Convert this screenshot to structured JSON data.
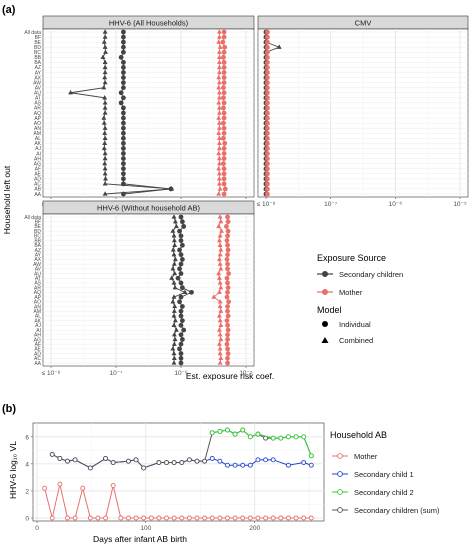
{
  "figure": {
    "panel_a_label": "(a)",
    "panel_b_label": "(b)"
  },
  "legend_a": {
    "exposure_title": "Exposure Source",
    "exposure_items": [
      {
        "label": "Secondary children",
        "color": "#444444"
      },
      {
        "label": "Mother",
        "color": "#e8706b"
      }
    ],
    "model_title": "Model",
    "model_items": [
      {
        "label": "Individual",
        "shape": "circle"
      },
      {
        "label": "Combined",
        "shape": "triangle"
      }
    ]
  },
  "legend_b": {
    "title": "Household AB",
    "items": [
      {
        "label": "Mother",
        "color": "#e8706b"
      },
      {
        "label": "Secondary child 1",
        "color": "#2244cc"
      },
      {
        "label": "Secondary child 2",
        "color": "#33cc33"
      },
      {
        "label": "Secondary children (sum)",
        "color": "#555555"
      }
    ]
  },
  "chart_data": [
    {
      "type": "scatter",
      "title": "HHV-6 (All Households)",
      "xlabel": "Est. exposure risk coef.",
      "ylabel": "Household left out",
      "x_scale": "log",
      "xlim": [
        1e-08,
        1e-05
      ],
      "x_tick_labels": [
        "≤ 10⁻⁸",
        "10⁻⁷",
        "10⁻⁶",
        "10⁻⁵"
      ],
      "categories": [
        "All data",
        "BF",
        "BE",
        "BD",
        "BC",
        "BB",
        "BA",
        "AZ",
        "AY",
        "AX",
        "AW",
        "AV",
        "AU",
        "AT",
        "AS",
        "AR",
        "AQ",
        "AP",
        "AO",
        "AN",
        "AM",
        "AL",
        "AK",
        "AJ",
        "AI",
        "AH",
        "AG",
        "AF",
        "AE",
        "AD",
        "AC",
        "AB",
        "AA"
      ],
      "series": [
        {
          "name": "Secondary children",
          "model": "Individual",
          "color": "#444444",
          "values": [
            1.3e-07,
            1.3e-07,
            1.3e-07,
            1.3e-07,
            1.3e-07,
            1.2e-07,
            1.3e-07,
            1.3e-07,
            1.3e-07,
            1.3e-07,
            1.3e-07,
            1.3e-07,
            1.2e-07,
            1.3e-07,
            1.2e-07,
            1.3e-07,
            1.3e-07,
            1.3e-07,
            1.3e-07,
            1.3e-07,
            1.3e-07,
            1.3e-07,
            1.3e-07,
            1.3e-07,
            1.3e-07,
            1.3e-07,
            1.3e-07,
            1.3e-07,
            1.3e-07,
            1.3e-07,
            1.3e-07,
            7e-07,
            1.3e-07
          ]
        },
        {
          "name": "Secondary children",
          "model": "Combined",
          "color": "#444444",
          "values": [
            6.8e-08,
            6.8e-08,
            6.6e-08,
            6.8e-08,
            6.9e-08,
            6.3e-08,
            6.8e-08,
            6.8e-08,
            6.8e-08,
            6.7e-08,
            6.8e-08,
            6.5e-08,
            2e-08,
            6.7e-08,
            6.8e-08,
            6.8e-08,
            6.8e-08,
            6.5e-08,
            6.6e-08,
            6.8e-08,
            6.7e-08,
            6.8e-08,
            6.7e-08,
            6.6e-08,
            6.8e-08,
            6.8e-08,
            6.7e-08,
            6.8e-08,
            6.8e-08,
            6.9e-08,
            6.8e-08,
            7.2e-07,
            6.8e-08
          ]
        },
        {
          "name": "Mother",
          "model": "Individual",
          "color": "#e8706b",
          "values": [
            4.6e-06,
            4.6e-06,
            4.4e-06,
            4.7e-06,
            4.6e-06,
            4.5e-06,
            4.6e-06,
            4.6e-06,
            4.6e-06,
            4.6e-06,
            4.6e-06,
            4.5e-06,
            4.6e-06,
            4.5e-06,
            4.6e-06,
            4.5e-06,
            4.6e-06,
            4.6e-06,
            4.5e-06,
            4.6e-06,
            4.6e-06,
            4.5e-06,
            4.7e-06,
            4.6e-06,
            4.6e-06,
            4.6e-06,
            4.5e-06,
            4.6e-06,
            4.6e-06,
            4.6e-06,
            4.6e-06,
            4.8e-06,
            4.6e-06
          ]
        },
        {
          "name": "Mother",
          "model": "Combined",
          "color": "#e8706b",
          "values": [
            3.9e-06,
            3.9e-06,
            3.8e-06,
            4e-06,
            3.9e-06,
            3.9e-06,
            3.9e-06,
            3.9e-06,
            3.9e-06,
            3.8e-06,
            3.9e-06,
            3.8e-06,
            3.9e-06,
            3.9e-06,
            3.8e-06,
            3.9e-06,
            3.9e-06,
            3.8e-06,
            3.9e-06,
            3.9e-06,
            3.8e-06,
            3.9e-06,
            3.9e-06,
            3.9e-06,
            3.8e-06,
            3.9e-06,
            3.9e-06,
            3.8e-06,
            3.9e-06,
            3.9e-06,
            3.9e-06,
            4e-06,
            3.8e-06
          ]
        }
      ]
    },
    {
      "type": "scatter",
      "title": "CMV",
      "x_scale": "log",
      "xlim": [
        1e-08,
        1e-05
      ],
      "x_tick_labels": [
        "≤ 10⁻⁸",
        "10⁻⁷",
        "10⁻⁶",
        "10⁻⁵"
      ],
      "categories": [
        "All data",
        "BF",
        "BE",
        "BD",
        "BC",
        "BB",
        "BA",
        "AZ",
        "AY",
        "AX",
        "AW",
        "AV",
        "AU",
        "AT",
        "AS",
        "AR",
        "AQ",
        "AP",
        "AO",
        "AN",
        "AM",
        "AL",
        "AK",
        "AJ",
        "AI",
        "AH",
        "AG",
        "AF",
        "AE",
        "AD",
        "AC",
        "AB",
        "AA"
      ],
      "series": [
        {
          "name": "Secondary children",
          "model": "Individual",
          "color": "#444444",
          "values": [
            1e-08,
            1e-08,
            1e-08,
            1e-08,
            1e-08,
            1e-08,
            1e-08,
            1e-08,
            1e-08,
            1e-08,
            1e-08,
            1e-08,
            1e-08,
            1e-08,
            1e-08,
            1e-08,
            1e-08,
            1e-08,
            1e-08,
            1e-08,
            1e-08,
            1e-08,
            1e-08,
            1e-08,
            1e-08,
            1e-08,
            1e-08,
            1e-08,
            1e-08,
            1e-08,
            1e-08,
            1e-08,
            1e-08
          ]
        },
        {
          "name": "Secondary children",
          "model": "Combined",
          "color": "#444444",
          "values": [
            1e-08,
            1e-08,
            1e-08,
            1.6e-08,
            1e-08,
            1e-08,
            1e-08,
            1e-08,
            1e-08,
            1e-08,
            1e-08,
            1e-08,
            1e-08,
            1e-08,
            1e-08,
            1e-08,
            1e-08,
            1e-08,
            1e-08,
            1e-08,
            1e-08,
            1e-08,
            1e-08,
            1e-08,
            1e-08,
            1e-08,
            1e-08,
            1e-08,
            1e-08,
            1e-08,
            1e-08,
            1e-08,
            1e-08
          ]
        },
        {
          "name": "Mother",
          "model": "Individual",
          "color": "#e8706b",
          "values": [
            1.05e-08,
            1.05e-08,
            1.05e-08,
            1.05e-08,
            1.05e-08,
            1.05e-08,
            1.05e-08,
            1.05e-08,
            1.05e-08,
            1.05e-08,
            1.05e-08,
            1.05e-08,
            1.05e-08,
            1.05e-08,
            1.05e-08,
            1.05e-08,
            1.05e-08,
            1.05e-08,
            1.05e-08,
            1.05e-08,
            1.05e-08,
            1.05e-08,
            1.05e-08,
            1.05e-08,
            1.05e-08,
            1.05e-08,
            1.05e-08,
            1.05e-08,
            1.05e-08,
            1.05e-08,
            1.05e-08,
            1.05e-08,
            1.05e-08
          ]
        },
        {
          "name": "Mother",
          "model": "Combined",
          "color": "#e8706b",
          "values": [
            1.05e-08,
            1.05e-08,
            1.05e-08,
            1.05e-08,
            1.05e-08,
            1.05e-08,
            1.05e-08,
            1.05e-08,
            1.05e-08,
            1.05e-08,
            1.05e-08,
            1.05e-08,
            1.05e-08,
            1.05e-08,
            1.05e-08,
            1.05e-08,
            1.05e-08,
            1.05e-08,
            1.05e-08,
            1.05e-08,
            1.05e-08,
            1.05e-08,
            1.05e-08,
            1.05e-08,
            1.05e-08,
            1.05e-08,
            1.05e-08,
            1.05e-08,
            1.05e-08,
            1.05e-08,
            1.05e-08,
            1.05e-08,
            1.05e-08
          ]
        }
      ]
    },
    {
      "type": "scatter",
      "title": "HHV-6 (Without household AB)",
      "x_scale": "log",
      "xlim": [
        1e-08,
        1e-05
      ],
      "x_tick_labels": [
        "≤ 10⁻⁸",
        "10⁻⁷",
        "10⁻⁶",
        "10⁻⁵"
      ],
      "categories": [
        "All data",
        "BF",
        "BE",
        "BD",
        "BC",
        "BB",
        "BA",
        "AZ",
        "AY",
        "AX",
        "AW",
        "AV",
        "AU",
        "AT",
        "AS",
        "AR",
        "AQ",
        "AP",
        "AO",
        "AN",
        "AM",
        "AL",
        "AK",
        "AJ",
        "AI",
        "AH",
        "AG",
        "AF",
        "AE",
        "AD",
        "AC",
        "AA"
      ],
      "series": [
        {
          "name": "Secondary children",
          "model": "Individual",
          "color": "#444444",
          "values": [
            1e-06,
            1.05e-06,
            1.1e-06,
            9.5e-07,
            1e-06,
            1e-06,
            1.05e-06,
            9.5e-07,
            1e-06,
            1.05e-06,
            1e-06,
            9.5e-07,
            1e-06,
            9e-07,
            1e-06,
            1.05e-06,
            1.45e-06,
            1e-06,
            9.5e-07,
            1.05e-06,
            1e-06,
            1e-06,
            1.05e-06,
            1e-06,
            1.1e-06,
            1e-06,
            1.05e-06,
            1e-06,
            9.5e-07,
            1e-06,
            1e-06,
            1e-06
          ]
        },
        {
          "name": "Secondary children",
          "model": "Combined",
          "color": "#444444",
          "values": [
            7.8e-07,
            8.2e-07,
            8.5e-07,
            7.5e-07,
            7.8e-07,
            7.9e-07,
            8e-07,
            7.6e-07,
            7.8e-07,
            8.2e-07,
            7.9e-07,
            7.5e-07,
            8e-07,
            7.2e-07,
            7.8e-07,
            8.1e-07,
            1.15e-06,
            7.8e-07,
            7.5e-07,
            8e-07,
            7.9e-07,
            7.8e-07,
            8.2e-07,
            7.8e-07,
            8.5e-07,
            7.9e-07,
            8.1e-07,
            7.9e-07,
            7.5e-07,
            7.8e-07,
            7.9e-07,
            7.8e-07
          ]
        },
        {
          "name": "Mother",
          "model": "Individual",
          "color": "#e8706b",
          "values": [
            5.2e-06,
            5.3e-06,
            5e-06,
            5.3e-06,
            5.2e-06,
            5.1e-06,
            5.2e-06,
            5.3e-06,
            5.2e-06,
            5.1e-06,
            5.2e-06,
            5.2e-06,
            5.4e-06,
            5.1e-06,
            5.2e-06,
            5.3e-06,
            5.2e-06,
            5.1e-06,
            5.4e-06,
            5.2e-06,
            5.2e-06,
            5.3e-06,
            5.1e-06,
            5.2e-06,
            5.3e-06,
            5.2e-06,
            5.2e-06,
            5.1e-06,
            5.2e-06,
            5.3e-06,
            5.2e-06,
            5.2e-06
          ]
        },
        {
          "name": "Mother",
          "model": "Combined",
          "color": "#e8706b",
          "values": [
            4e-06,
            4.1e-06,
            3.8e-06,
            4.2e-06,
            4e-06,
            3.9e-06,
            4e-06,
            4.1e-06,
            4e-06,
            3.9e-06,
            4e-06,
            4.1e-06,
            3.8e-06,
            3.9e-06,
            4e-06,
            4.1e-06,
            3.9e-06,
            3.2e-06,
            4e-06,
            4e-06,
            4.1e-06,
            3.9e-06,
            4e-06,
            4.1e-06,
            3.9e-06,
            4e-06,
            4.1e-06,
            3.9e-06,
            4e-06,
            4e-06,
            4.1e-06,
            4e-06
          ]
        }
      ]
    },
    {
      "type": "line",
      "xlabel": "Days after infant AB birth",
      "ylabel": "HHV-6 log₁₀ VL",
      "xlim": [
        0,
        260
      ],
      "ylim": [
        0,
        6.8
      ],
      "x_ticks": [
        0,
        100,
        200
      ],
      "y_ticks": [
        0,
        2,
        4,
        6
      ],
      "series": [
        {
          "name": "Mother",
          "color": "#e8706b",
          "x": [
            7,
            14,
            21,
            28,
            35,
            42,
            49,
            56,
            63,
            70,
            77,
            84,
            91,
            98,
            105,
            112,
            119,
            126,
            133,
            140,
            147,
            154,
            161,
            168,
            175,
            182,
            189,
            196,
            203,
            210,
            217,
            224,
            231,
            238,
            245,
            252
          ],
          "y": [
            2.2,
            0,
            2.5,
            0,
            0,
            2.2,
            0,
            0,
            0,
            2.4,
            0,
            0,
            0,
            0,
            0,
            0,
            0,
            0,
            0,
            0,
            0,
            0,
            0,
            0,
            0,
            0,
            0,
            0,
            0,
            0,
            0,
            0,
            0,
            0,
            0,
            0
          ]
        },
        {
          "name": "Secondary child 1",
          "color": "#2244cc",
          "x": [
            14,
            21,
            28,
            35,
            49,
            63,
            70,
            84,
            91,
            98,
            112,
            119,
            126,
            133,
            140,
            147,
            154,
            161,
            168,
            175,
            182,
            189,
            196,
            203,
            210,
            217,
            231,
            245,
            252
          ],
          "y": [
            4.7,
            4.4,
            4.2,
            4.3,
            3.7,
            4.4,
            4.1,
            4.2,
            4.3,
            3.7,
            4.1,
            4.1,
            4.1,
            4.1,
            4.3,
            4.2,
            4.2,
            4.4,
            4.2,
            3.9,
            3.9,
            3.9,
            3.9,
            4.3,
            4.3,
            4.3,
            3.9,
            4.1,
            3.9
          ]
        },
        {
          "name": "Secondary child 2",
          "color": "#33cc33",
          "x": [
            161,
            168,
            175,
            182,
            189,
            196,
            203,
            217,
            224,
            231,
            238,
            245,
            252
          ],
          "y": [
            6.3,
            6.4,
            6.5,
            6.2,
            6.5,
            6.0,
            6.2,
            5.9,
            5.9,
            6.0,
            6.0,
            6.0,
            4.6
          ]
        },
        {
          "name": "Secondary children (sum)",
          "color": "#555555",
          "x": [
            14,
            21,
            28,
            35,
            49,
            63,
            70,
            84,
            91,
            98,
            112,
            119,
            126,
            133,
            140,
            147,
            154,
            161,
            168,
            175,
            182,
            189,
            196,
            203,
            210,
            217,
            224,
            231,
            238,
            245,
            252
          ],
          "y": [
            4.7,
            4.4,
            4.2,
            4.3,
            3.7,
            4.4,
            4.1,
            4.2,
            4.3,
            3.7,
            4.1,
            4.1,
            4.1,
            4.1,
            4.3,
            4.2,
            4.2,
            6.3,
            6.4,
            6.5,
            6.2,
            6.5,
            6.0,
            6.2,
            5.9,
            5.9,
            5.9,
            6.0,
            6.0,
            6.0,
            4.6
          ]
        }
      ]
    }
  ]
}
